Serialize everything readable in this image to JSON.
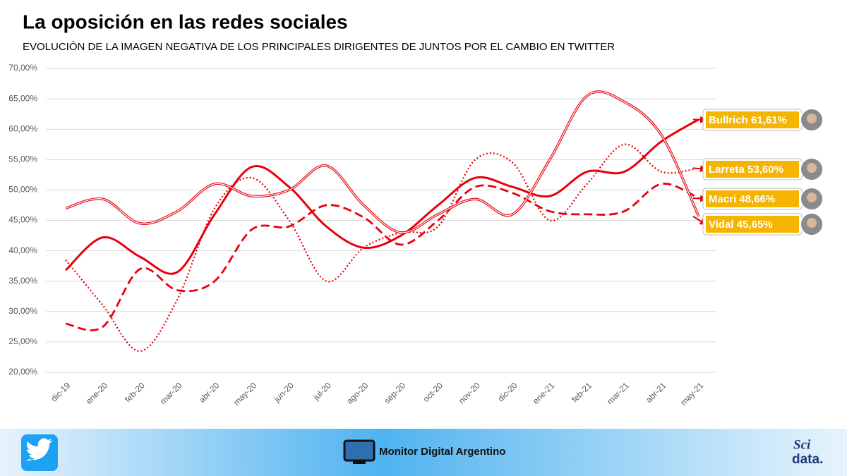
{
  "chart_data": {
    "type": "line",
    "title": "La oposición en las redes sociales",
    "subtitle": "EVOLUCIÓN DE LA IMAGEN NEGATIVA DE LOS PRINCIPALES DIRIGENTES DE JUNTOS POR EL CAMBIO EN TWITTER",
    "categories": [
      "dic-19",
      "ene-20",
      "feb-20",
      "mar-20",
      "abr-20",
      "may-20",
      "jun-20",
      "jul-20",
      "ago-20",
      "sep-20",
      "oct-20",
      "nov-20",
      "dic-20",
      "ene-21",
      "feb-21",
      "mar-21",
      "abr-21",
      "may-21"
    ],
    "ylim": [
      20,
      70
    ],
    "yticks": [
      {
        "value": 20,
        "label": "20,00%"
      },
      {
        "value": 25,
        "label": "25,00%"
      },
      {
        "value": 30,
        "label": "30,00%"
      },
      {
        "value": 35,
        "label": "35,00%"
      },
      {
        "value": 40,
        "label": "40,00%"
      },
      {
        "value": 45,
        "label": "45,00%"
      },
      {
        "value": 50,
        "label": "50,00%"
      },
      {
        "value": 55,
        "label": "55,00%"
      },
      {
        "value": 60,
        "label": "60,00%"
      },
      {
        "value": 65,
        "label": "65,00%"
      },
      {
        "value": 70,
        "label": "70,00%"
      }
    ],
    "grid": true,
    "series": [
      {
        "name": "Bullrich",
        "color": "#e8000b",
        "dash": "solid",
        "values": [
          36.8,
          42.2,
          39,
          36.5,
          46,
          53.8,
          50.5,
          44,
          40.5,
          42.5,
          47.5,
          52,
          50.5,
          49,
          53,
          53,
          58,
          61.61
        ],
        "value_labels": [
          null,
          null,
          null,
          null,
          null,
          null,
          null,
          null,
          null,
          null,
          null,
          null,
          null,
          null,
          null,
          null,
          null,
          "61,61%"
        ]
      },
      {
        "name": "Larreta",
        "color": "#e8000b",
        "dash": "dotted",
        "values": [
          38.5,
          31,
          23.5,
          32,
          47,
          52,
          45,
          35,
          40.5,
          43,
          44,
          55,
          54.5,
          45,
          51,
          57.5,
          53,
          53.6
        ],
        "value_labels": [
          null,
          null,
          null,
          null,
          null,
          null,
          null,
          null,
          null,
          null,
          null,
          null,
          null,
          null,
          null,
          null,
          null,
          "53,60%"
        ]
      },
      {
        "name": "Macri",
        "color": "#e8000b",
        "dash": "dashed",
        "values": [
          28,
          27.5,
          37,
          33.5,
          35,
          43.5,
          44,
          47.5,
          45.5,
          41,
          45,
          50.5,
          49.5,
          46.5,
          46,
          46.5,
          51,
          48.66
        ],
        "value_labels": [
          null,
          null,
          null,
          null,
          null,
          null,
          null,
          null,
          null,
          null,
          null,
          null,
          null,
          null,
          null,
          null,
          null,
          "48,66%"
        ]
      },
      {
        "name": "Vidal",
        "color": "#e8000b",
        "dash": "double",
        "values": [
          47,
          48.5,
          44.5,
          46.5,
          51,
          49,
          50,
          54,
          47.5,
          43,
          46,
          48.5,
          46,
          55,
          65.5,
          64.5,
          59,
          45.65
        ],
        "value_labels": [
          null,
          null,
          null,
          null,
          null,
          null,
          null,
          null,
          null,
          null,
          null,
          null,
          null,
          null,
          null,
          null,
          null,
          "45,65%"
        ]
      }
    ]
  },
  "footer": {
    "brand": "Monitor Digital Argentino",
    "logo_top": "Sci",
    "logo_bottom": "data."
  }
}
